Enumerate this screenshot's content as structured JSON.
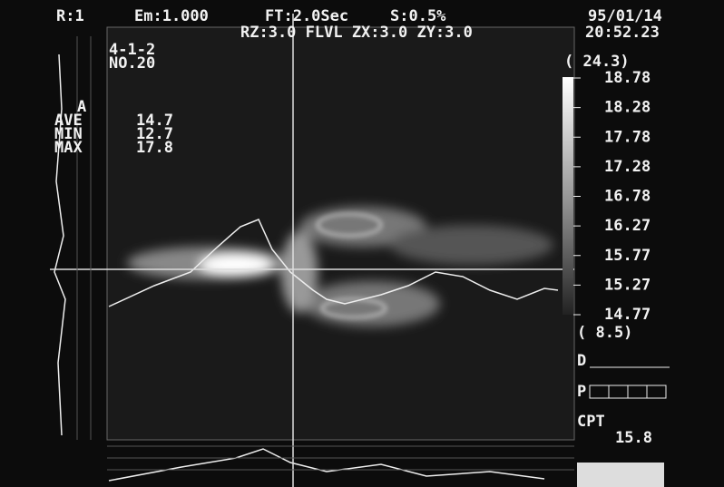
{
  "header": {
    "range": "R:1",
    "emissivity": "Em:1.000",
    "frame_time": "FT:2.0Sec",
    "sensitivity": "S:0.5%",
    "date": "95/01/14",
    "zoom": "RZ:3.0 FLVL ZX:3.0 ZY:3.0",
    "time": "20:52.23"
  },
  "file": {
    "id": "4-1-2",
    "number": "NO.20"
  },
  "stats": {
    "area": "A",
    "rows": [
      {
        "label": "AVE",
        "value": "14.7"
      },
      {
        "label": "MIN",
        "value": "12.7"
      },
      {
        "label": "MAX",
        "value": "17.8"
      }
    ]
  },
  "scale": {
    "top": "( 24.3)",
    "labels": [
      "18.78",
      "18.28",
      "17.78",
      "17.28",
      "16.78",
      "16.27",
      "15.77",
      "15.27",
      "14.77"
    ],
    "bottom": "( 8.5)"
  },
  "panel": {
    "d_label": "D",
    "p_label": "P",
    "cpt_label": "CPT",
    "cpt_value": "15.8"
  }
}
